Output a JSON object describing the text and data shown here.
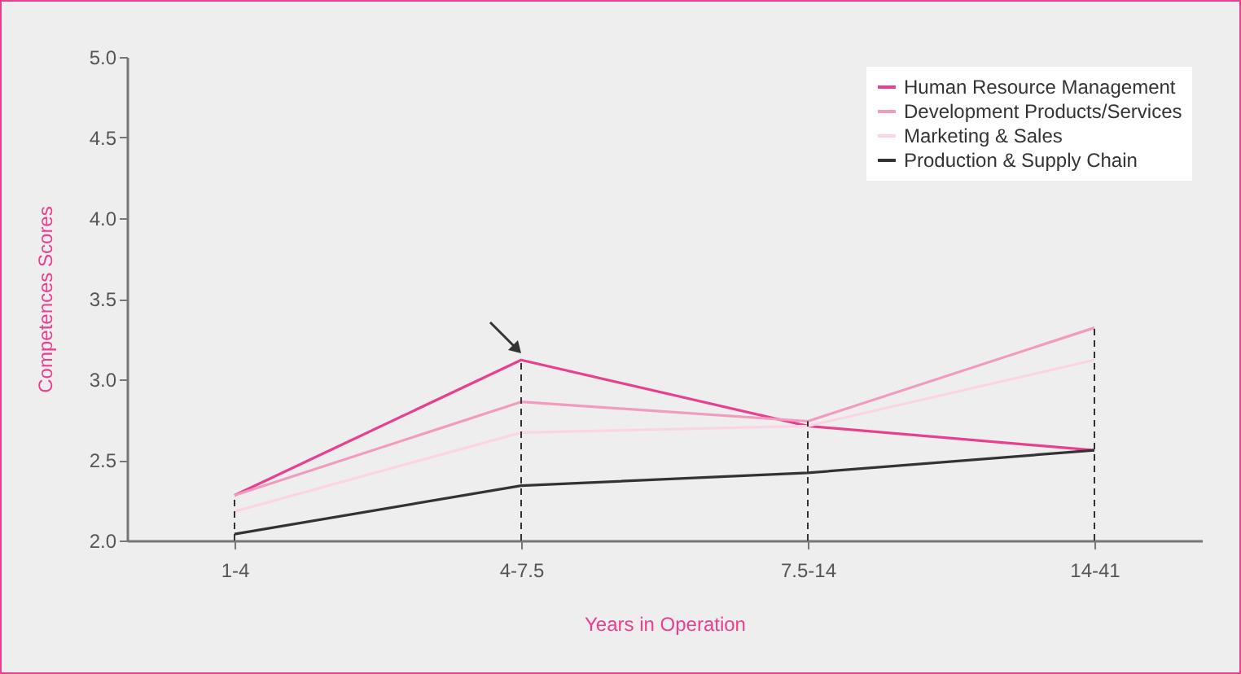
{
  "chart_data": {
    "type": "line",
    "xlabel": "Years in Operation",
    "ylabel": "Competences Scores",
    "categories": [
      "1-4",
      "4-7.5",
      "7.5-14",
      "14-41"
    ],
    "series": [
      {
        "name": "Human Resource Management",
        "color": "#e8408f",
        "values": [
          2.28,
          3.12,
          2.71,
          2.56
        ]
      },
      {
        "name": "Development Products/Services",
        "color": "#f29bbf",
        "values": [
          2.28,
          2.86,
          2.74,
          3.32
        ]
      },
      {
        "name": "Marketing & Sales",
        "color": "#fbd5e3",
        "values": [
          2.18,
          2.67,
          2.71,
          3.12
        ]
      },
      {
        "name": "Production & Supply Chain",
        "color": "#333333",
        "values": [
          2.04,
          2.34,
          2.42,
          2.56
        ]
      }
    ],
    "ylim": [
      2.0,
      5.0
    ],
    "yticks": [
      {
        "value": 2.0,
        "label": "2.0"
      },
      {
        "value": 2.5,
        "label": "2.5"
      },
      {
        "value": 3.0,
        "label": "3.0"
      },
      {
        "value": 3.5,
        "label": "3.5"
      },
      {
        "value": 4.0,
        "label": "4.0"
      },
      {
        "value": 4.5,
        "label": "4.5"
      },
      {
        "value": 5.0,
        "label": "5.0"
      }
    ],
    "ref_lines": [
      {
        "axis": "x",
        "value": "1-4",
        "line_style": "dashed"
      },
      {
        "axis": "x",
        "value": "4-7.5",
        "line_style": "dashed"
      },
      {
        "axis": "x",
        "value": "7.5-14",
        "line_style": "dashed"
      },
      {
        "axis": "x",
        "value": "14-41",
        "line_style": "dashed"
      }
    ],
    "grid": false,
    "legend": "top right",
    "marker": "none",
    "line_style": "solid"
  }
}
